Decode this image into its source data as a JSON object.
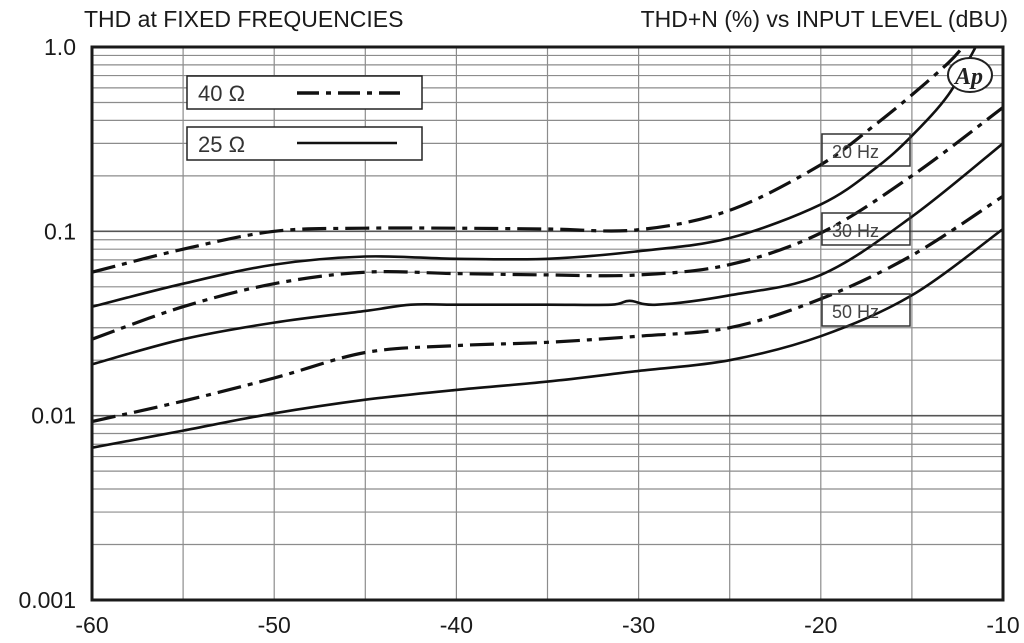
{
  "chart_data": {
    "type": "line",
    "title_left": "THD at FIXED FREQUENCIES",
    "title_right": "THD+N (%) vs INPUT LEVEL (dBU)",
    "xlabel": "",
    "ylabel": "",
    "xlim": [
      -60,
      -10
    ],
    "ylim": [
      0.001,
      1.0
    ],
    "y_scale": "log",
    "grid": true,
    "x_ticks": [
      -60,
      -50,
      -40,
      -30,
      -20,
      -10
    ],
    "x_tick_labels": [
      "-60",
      "-50",
      "-40",
      "-30",
      "-20",
      "-10"
    ],
    "y_ticks": [
      0.001,
      0.01,
      0.1,
      1.0
    ],
    "y_tick_labels": [
      "0.001",
      "0.01",
      "0.1",
      "1.0"
    ],
    "legend": {
      "position": "top-left",
      "entries": [
        {
          "label": "40 Ω",
          "style": "dashdot"
        },
        {
          "label": "25 Ω",
          "style": "solid"
        }
      ]
    },
    "annotations": [
      "20 Hz",
      "30 Hz",
      "50 Hz"
    ],
    "logo_text": "Ap",
    "series": [
      {
        "group": "20 Hz",
        "style": "dashdot",
        "x": [
          -60,
          -55,
          -50,
          -45,
          -40,
          -35,
          -30,
          -25,
          -20,
          -17,
          -15,
          -13,
          -12.2
        ],
        "y": [
          0.06,
          0.08,
          0.1,
          0.104,
          0.104,
          0.103,
          0.102,
          0.13,
          0.23,
          0.38,
          0.55,
          0.82,
          1.0
        ]
      },
      {
        "group": "20 Hz",
        "style": "solid",
        "x": [
          -60,
          -55,
          -50,
          -45,
          -40,
          -35,
          -30,
          -25,
          -20,
          -17,
          -15,
          -13,
          -11.5
        ],
        "y": [
          0.039,
          0.052,
          0.066,
          0.073,
          0.071,
          0.071,
          0.078,
          0.092,
          0.14,
          0.22,
          0.33,
          0.55,
          1.0
        ]
      },
      {
        "group": "30 Hz",
        "style": "dashdot",
        "x": [
          -60,
          -55,
          -50,
          -45,
          -40,
          -35,
          -30,
          -25,
          -20,
          -15,
          -10
        ],
        "y": [
          0.026,
          0.039,
          0.052,
          0.06,
          0.059,
          0.058,
          0.058,
          0.066,
          0.098,
          0.2,
          0.47
        ]
      },
      {
        "group": "30 Hz",
        "style": "solid",
        "x": [
          -60,
          -55,
          -50,
          -45,
          -42.5,
          -40,
          -35,
          -31.5,
          -30.5,
          -29,
          -25,
          -20,
          -15,
          -10
        ],
        "y": [
          0.019,
          0.026,
          0.032,
          0.037,
          0.04,
          0.04,
          0.04,
          0.04,
          0.042,
          0.04,
          0.045,
          0.058,
          0.12,
          0.3
        ]
      },
      {
        "group": "50 Hz",
        "style": "dashdot",
        "x": [
          -60,
          -55,
          -50,
          -45,
          -40,
          -35,
          -30,
          -25,
          -20,
          -15,
          -10
        ],
        "y": [
          0.0093,
          0.012,
          0.016,
          0.022,
          0.024,
          0.025,
          0.027,
          0.03,
          0.043,
          0.074,
          0.155
        ]
      },
      {
        "group": "50 Hz",
        "style": "solid",
        "x": [
          -60,
          -55,
          -50,
          -45,
          -40,
          -35,
          -30,
          -25,
          -20,
          -15,
          -10
        ],
        "y": [
          0.0067,
          0.0083,
          0.0103,
          0.0122,
          0.0138,
          0.0153,
          0.0175,
          0.02,
          0.027,
          0.045,
          0.103
        ]
      }
    ]
  }
}
